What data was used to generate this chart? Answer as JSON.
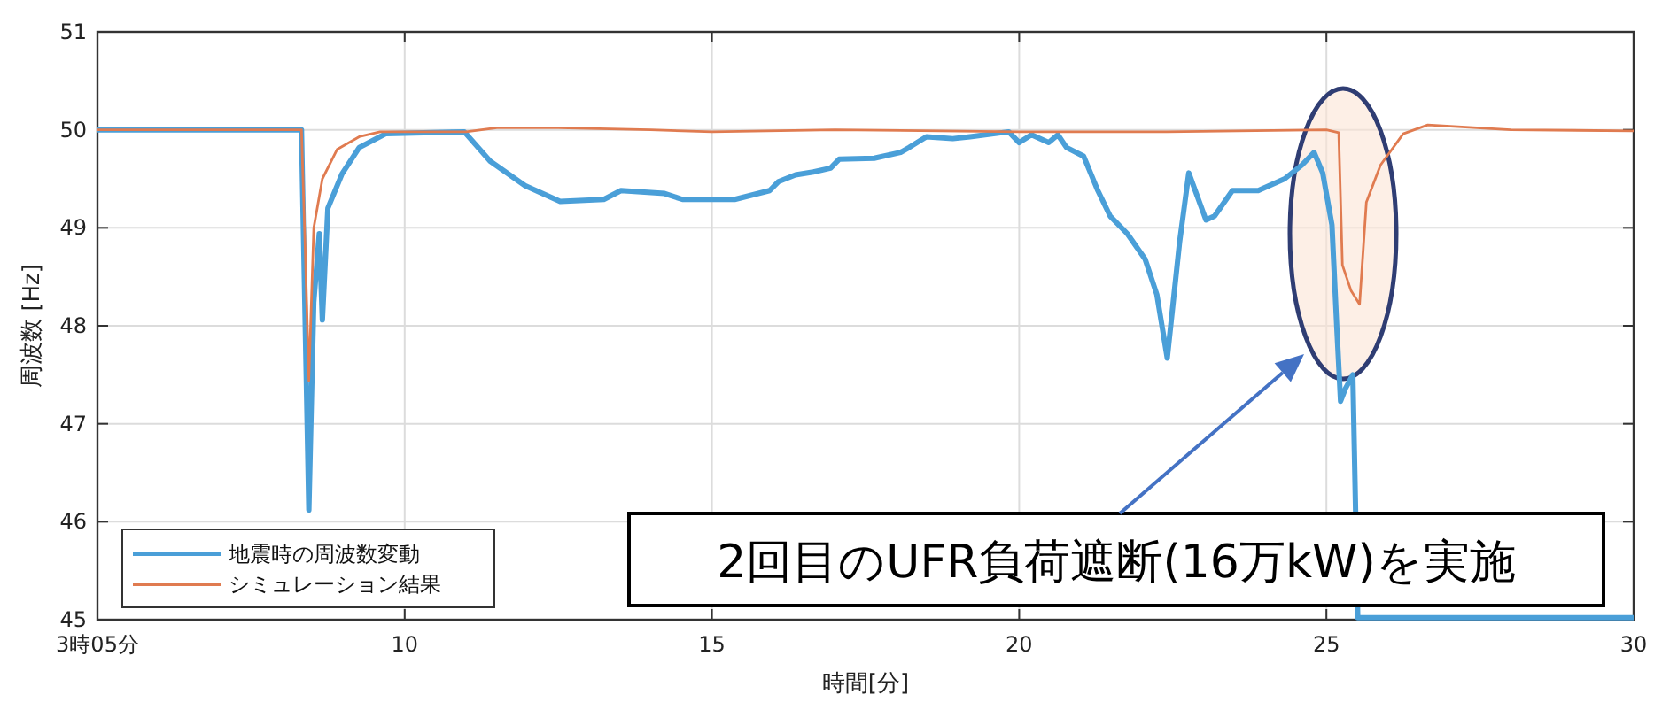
{
  "chart_data": {
    "type": "line",
    "xlabel": "時間[分]",
    "ylabel": "周波数 [Hz]",
    "xlim": [
      5,
      30
    ],
    "xticks": [
      {
        "value": 5,
        "label": "3時05分"
      },
      10,
      15,
      20,
      25,
      30
    ],
    "ylim": [
      45,
      51
    ],
    "yticks": [
      45,
      46,
      47,
      48,
      49,
      50,
      51
    ],
    "grid": true,
    "legend": "bottom left",
    "line_style": "solid",
    "marker": "none",
    "annotations": [
      "2回目のUFR負荷遮断(16万kW)を実施"
    ],
    "series": [
      {
        "name": "地震時の周波数変動",
        "color": "#4a9fd8",
        "x": [
          5,
          8.32,
          8.44,
          8.52,
          8.61,
          8.66,
          8.75,
          8.98,
          9.26,
          9.69,
          10.97,
          11.39,
          11.96,
          12.53,
          13.24,
          13.52,
          14.23,
          14.52,
          15.37,
          15.94,
          16.08,
          16.36,
          16.65,
          16.93,
          17.07,
          17.64,
          18.07,
          18.21,
          18.49,
          18.92,
          19.2,
          19.83,
          20.0,
          20.2,
          20.48,
          20.63,
          20.77,
          21.05,
          21.28,
          21.48,
          21.76,
          22.05,
          22.24,
          22.41,
          22.61,
          22.76,
          23.04,
          23.18,
          23.47,
          23.89,
          24.32,
          24.6,
          24.8,
          24.94,
          25.09,
          25.17,
          25.23,
          25.31,
          25.43,
          25.51,
          30
        ],
        "values": [
          50.0,
          50.0,
          46.12,
          48.24,
          48.94,
          48.06,
          49.2,
          49.55,
          49.82,
          49.96,
          49.98,
          49.68,
          49.43,
          49.27,
          49.29,
          49.38,
          49.35,
          49.29,
          49.29,
          49.38,
          49.47,
          49.54,
          49.57,
          49.61,
          49.7,
          49.71,
          49.77,
          49.82,
          49.93,
          49.91,
          49.93,
          49.98,
          49.87,
          49.95,
          49.87,
          49.95,
          49.82,
          49.73,
          49.38,
          49.12,
          48.94,
          48.68,
          48.32,
          47.67,
          48.85,
          49.56,
          49.08,
          49.12,
          49.38,
          49.38,
          49.5,
          49.64,
          49.77,
          49.56,
          49.03,
          47.97,
          47.23,
          47.36,
          47.5,
          45.02,
          45.02
        ]
      },
      {
        "name": "シミュレーション結果",
        "color": "#e07b50",
        "x": [
          5,
          8.32,
          8.38,
          8.44,
          8.52,
          8.66,
          8.9,
          9.26,
          9.6,
          11,
          11.5,
          12.5,
          14,
          15,
          17,
          20,
          22.4,
          25.0,
          25.2,
          25.26,
          25.4,
          25.54,
          25.65,
          25.88,
          26.25,
          26.65,
          28,
          30
        ],
        "values": [
          50.0,
          50.0,
          48.8,
          47.44,
          49.0,
          49.5,
          49.8,
          49.93,
          49.98,
          49.98,
          50.02,
          50.02,
          50.0,
          49.98,
          50.0,
          49.98,
          49.98,
          50.0,
          49.97,
          48.62,
          48.36,
          48.22,
          49.26,
          49.64,
          49.96,
          50.05,
          50.0,
          49.99
        ]
      }
    ]
  }
}
